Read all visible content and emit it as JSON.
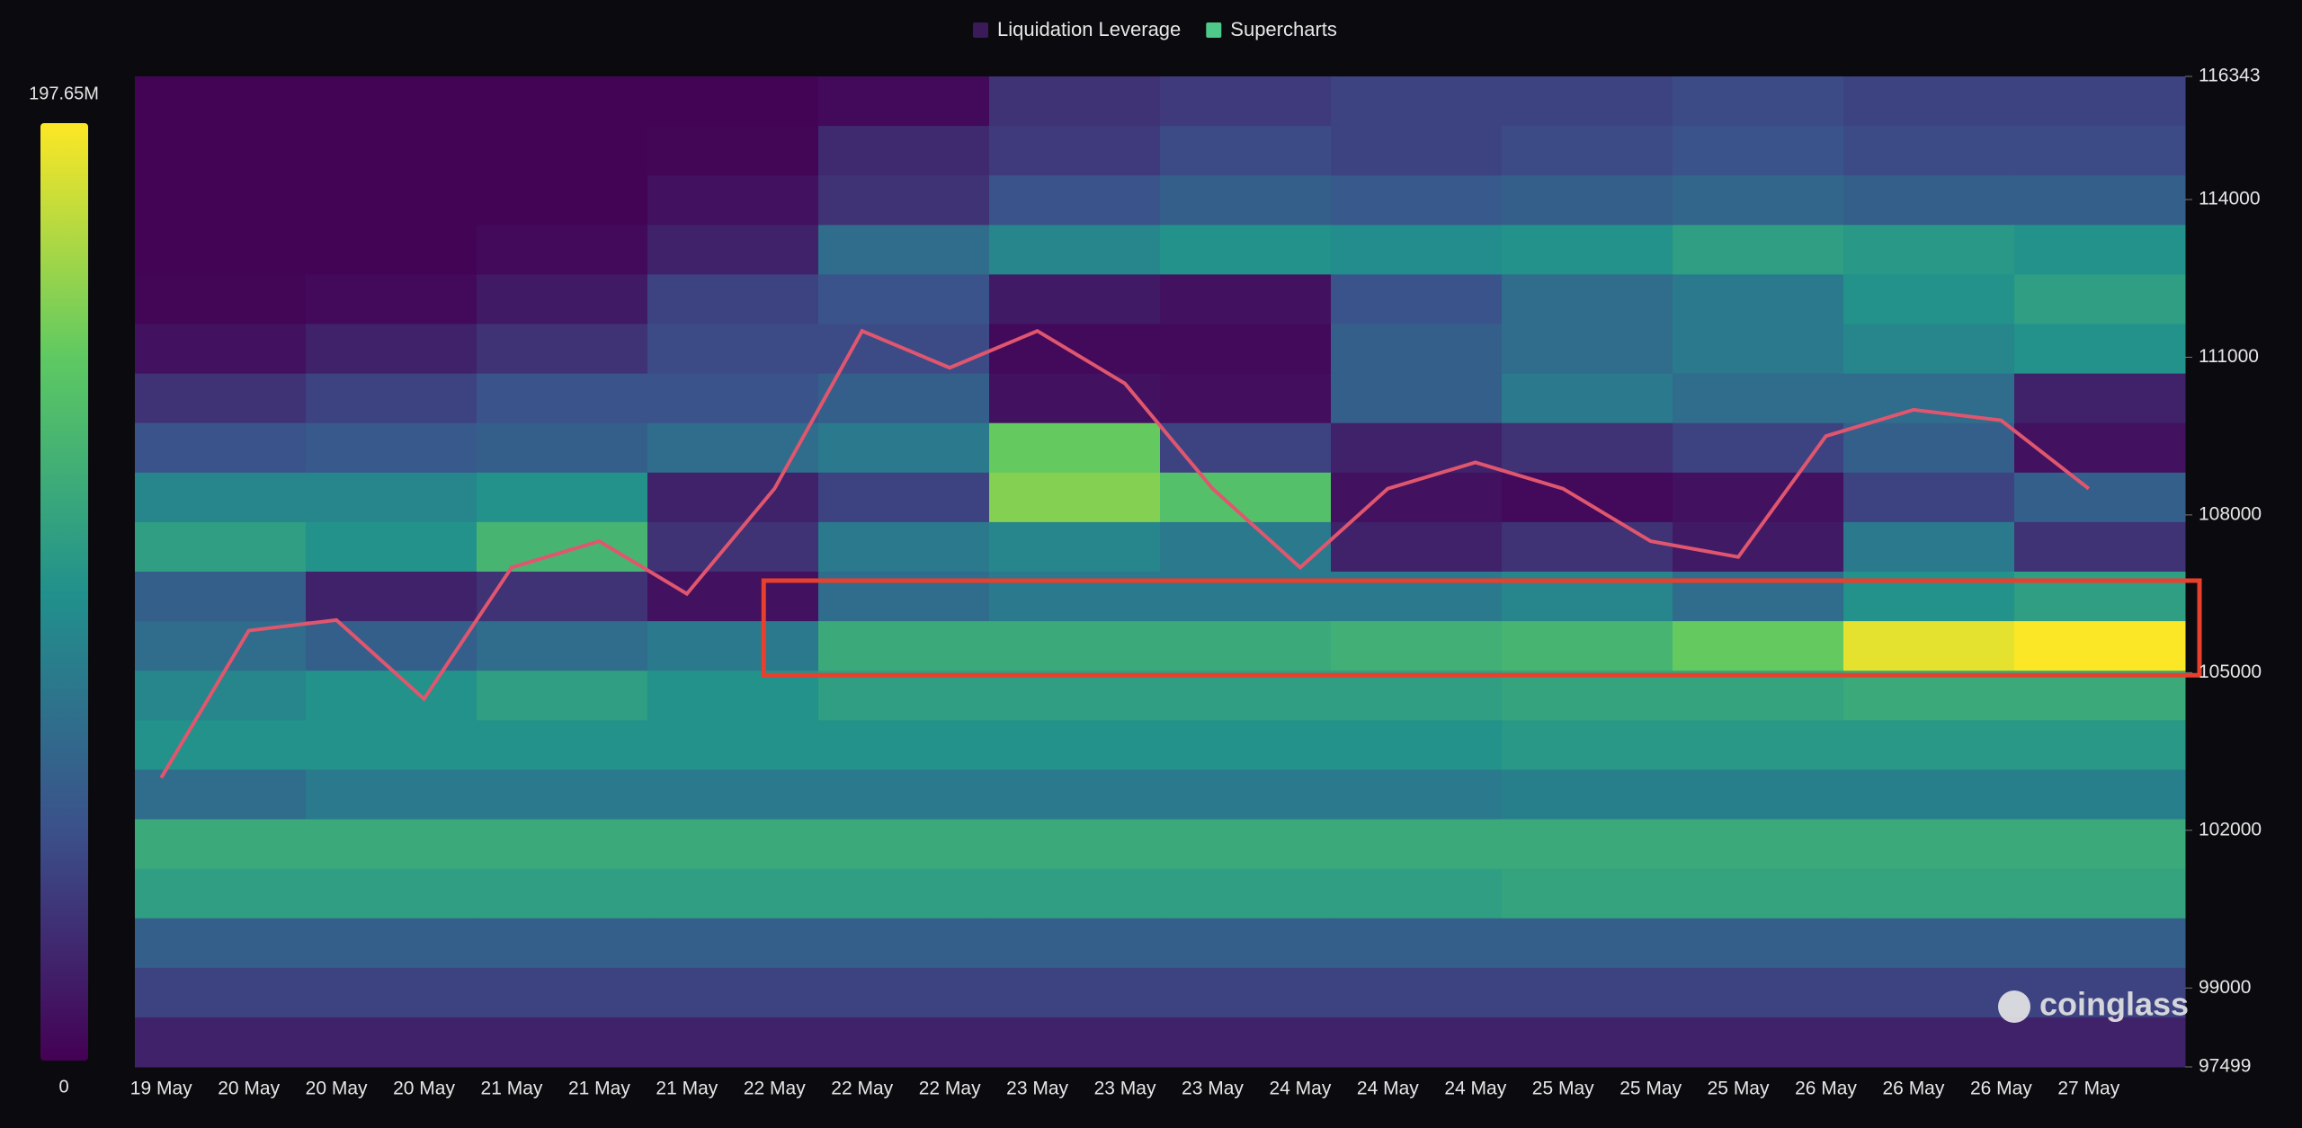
{
  "chart_data": {
    "type": "heatmap",
    "legend": [
      {
        "name": "Liquidation Leverage",
        "color": "#3b1a5a"
      },
      {
        "name": "Supercharts",
        "color": "#4fc98a"
      }
    ],
    "categories": [
      "19 May",
      "20 May",
      "20 May",
      "20 May",
      "21 May",
      "21 May",
      "21 May",
      "22 May",
      "22 May",
      "22 May",
      "23 May",
      "23 May",
      "23 May",
      "24 May",
      "24 May",
      "24 May",
      "25 May",
      "25 May",
      "25 May",
      "26 May",
      "26 May",
      "26 May",
      "27 May"
    ],
    "ylim": [
      97499,
      116343
    ],
    "yticks": [
      116343,
      114000,
      111000,
      108000,
      105000,
      102000,
      99000,
      97499
    ],
    "colorbar": {
      "ticks": [
        {
          "value": 197650000,
          "label": "197.65M"
        },
        0
      ],
      "colormap": [
        "#440154",
        "#3b528b",
        "#21918c",
        "#5ec962",
        "#fde725"
      ]
    },
    "heatmap": {
      "values": [
        [
          2000000.0,
          2000000.0,
          2000000.0,
          2000000.0,
          5000000.0,
          30000000.0,
          35000000.0,
          40000000.0,
          40000000.0,
          45000000.0,
          40000000.0,
          40000000.0
        ],
        [
          2000000.0,
          2000000.0,
          2000000.0,
          3000000.0,
          25000000.0,
          35000000.0,
          45000000.0,
          40000000.0,
          45000000.0,
          50000000.0,
          45000000.0,
          45000000.0
        ],
        [
          2000000.0,
          2000000.0,
          2000000.0,
          10000000.0,
          30000000.0,
          50000000.0,
          60000000.0,
          55000000.0,
          60000000.0,
          65000000.0,
          60000000.0,
          60000000.0
        ],
        [
          2000000.0,
          2000000.0,
          5000000.0,
          20000000.0,
          70000000.0,
          90000000.0,
          100000000.0,
          95000000.0,
          100000000.0,
          110000000.0,
          105000000.0,
          100000000.0
        ],
        [
          3000000.0,
          5000000.0,
          15000000.0,
          40000000.0,
          50000000.0,
          15000000.0,
          10000000.0,
          50000000.0,
          70000000.0,
          80000000.0,
          100000000.0,
          110000000.0
        ],
        [
          10000000.0,
          20000000.0,
          30000000.0,
          45000000.0,
          45000000.0,
          5000000.0,
          5000000.0,
          60000000.0,
          70000000.0,
          80000000.0,
          90000000.0,
          100000000.0
        ],
        [
          30000000.0,
          40000000.0,
          50000000.0,
          50000000.0,
          60000000.0,
          10000000.0,
          8000000.0,
          60000000.0,
          80000000.0,
          70000000.0,
          70000000.0,
          20000000.0
        ],
        [
          50000000.0,
          55000000.0,
          60000000.0,
          70000000.0,
          80000000.0,
          150000000.0,
          40000000.0,
          20000000.0,
          30000000.0,
          40000000.0,
          60000000.0,
          10000000.0
        ],
        [
          90000000.0,
          90000000.0,
          100000000.0,
          20000000.0,
          40000000.0,
          160000000.0,
          140000000.0,
          10000000.0,
          5000000.0,
          10000000.0,
          40000000.0,
          60000000.0
        ],
        [
          110000000.0,
          100000000.0,
          130000000.0,
          30000000.0,
          80000000.0,
          90000000.0,
          80000000.0,
          20000000.0,
          30000000.0,
          15000000.0,
          80000000.0,
          30000000.0
        ],
        [
          60000000.0,
          20000000.0,
          30000000.0,
          10000000.0,
          70000000.0,
          80000000.0,
          80000000.0,
          80000000.0,
          90000000.0,
          70000000.0,
          100000000.0,
          110000000.0
        ],
        [
          70000000.0,
          60000000.0,
          70000000.0,
          80000000.0,
          120000000.0,
          120000000.0,
          120000000.0,
          125000000.0,
          130000000.0,
          150000000.0,
          190000000.0,
          197000000.0
        ],
        [
          90000000.0,
          100000000.0,
          110000000.0,
          100000000.0,
          110000000.0,
          110000000.0,
          110000000.0,
          110000000.0,
          115000000.0,
          115000000.0,
          120000000.0,
          120000000.0
        ],
        [
          100000000.0,
          100000000.0,
          100000000.0,
          100000000.0,
          100000000.0,
          100000000.0,
          100000000.0,
          100000000.0,
          105000000.0,
          105000000.0,
          105000000.0,
          105000000.0
        ],
        [
          70000000.0,
          80000000.0,
          80000000.0,
          80000000.0,
          80000000.0,
          80000000.0,
          80000000.0,
          80000000.0,
          85000000.0,
          85000000.0,
          85000000.0,
          85000000.0
        ],
        [
          120000000.0,
          120000000.0,
          120000000.0,
          120000000.0,
          120000000.0,
          120000000.0,
          120000000.0,
          120000000.0,
          120000000.0,
          120000000.0,
          120000000.0,
          120000000.0
        ],
        [
          110000000.0,
          110000000.0,
          110000000.0,
          110000000.0,
          110000000.0,
          110000000.0,
          110000000.0,
          110000000.0,
          115000000.0,
          115000000.0,
          115000000.0,
          115000000.0
        ],
        [
          60000000.0,
          60000000.0,
          60000000.0,
          60000000.0,
          60000000.0,
          60000000.0,
          60000000.0,
          60000000.0,
          60000000.0,
          60000000.0,
          60000000.0,
          60000000.0
        ],
        [
          40000000.0,
          40000000.0,
          40000000.0,
          40000000.0,
          40000000.0,
          40000000.0,
          40000000.0,
          40000000.0,
          40000000.0,
          40000000.0,
          40000000.0,
          40000000.0
        ],
        [
          20000000.0,
          20000000.0,
          20000000.0,
          20000000.0,
          20000000.0,
          20000000.0,
          20000000.0,
          20000000.0,
          20000000.0,
          20000000.0,
          20000000.0,
          20000000.0
        ]
      ]
    },
    "price": {
      "color": "#e0566e",
      "values": [
        103000,
        105800,
        106000,
        104500,
        107000,
        107500,
        106500,
        108500,
        111500,
        110800,
        111500,
        110500,
        108500,
        107000,
        108500,
        109000,
        108500,
        107500,
        107200,
        109500,
        110000,
        109800,
        108500
      ]
    },
    "highlight": {
      "color": "#e8402c",
      "x_start": 7,
      "ylim": [
        104950,
        106750
      ]
    },
    "watermark": "coinglass"
  }
}
